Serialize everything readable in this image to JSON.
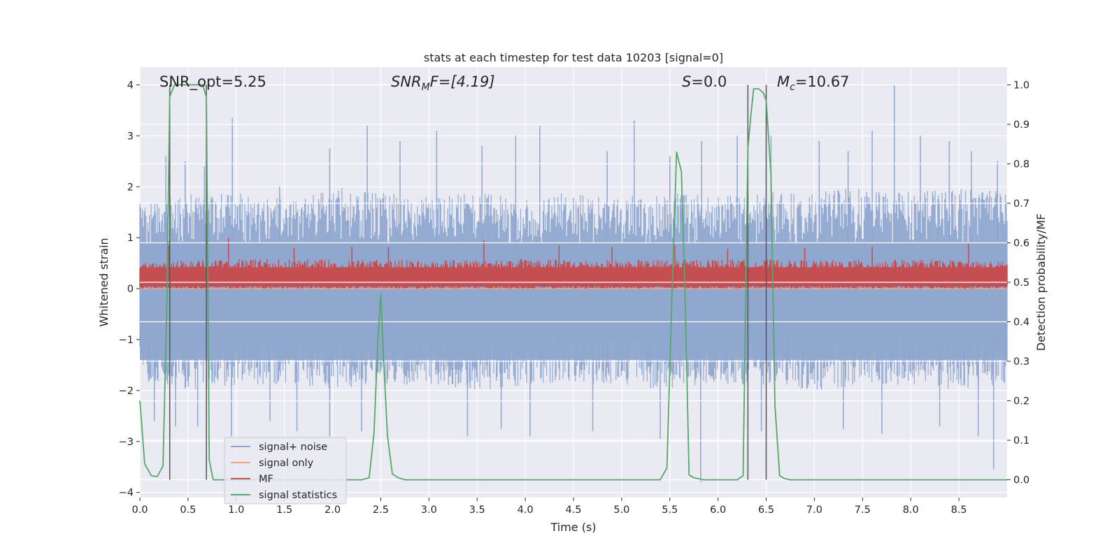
{
  "chart_data": {
    "type": "line",
    "title": "stats at each timestep for test data 10203 [signal=0]",
    "xlabel": "Time (s)",
    "ylabel_left": "Whitened strain",
    "ylabel_right": "Detection probability/MF",
    "xlim": [
      0.0,
      9.0
    ],
    "ylim_left": [
      -4.1,
      4.35
    ],
    "ylim_right": [
      -0.045,
      1.045
    ],
    "x_ticks": [
      "0.0",
      "0.5",
      "1.0",
      "1.5",
      "2.0",
      "2.5",
      "3.0",
      "3.5",
      "4.0",
      "4.5",
      "5.0",
      "5.5",
      "6.0",
      "6.5",
      "7.0",
      "7.5",
      "8.0",
      "8.5"
    ],
    "y_left_ticks": [
      "4",
      "3",
      "2",
      "1",
      "0",
      "−1",
      "−2",
      "−3",
      "−4"
    ],
    "y_right_ticks": [
      "1.0",
      "0.9",
      "0.8",
      "0.7",
      "0.6",
      "0.5",
      "0.4",
      "0.3",
      "0.2",
      "0.1",
      "0.0"
    ],
    "grid": true,
    "legend_position": "lower-left",
    "annotations": {
      "snr_opt": "SNR_opt=5.25",
      "snr_mf_main": "SNR",
      "snr_mf_sub": "M",
      "snr_mf_tail": "F=[4.19]",
      "s_main": "S",
      "s_tail": "=0.0",
      "mc_main": "M",
      "mc_sub": "c",
      "mc_tail": "=10.67"
    },
    "vertical_markers_s": [
      0.31,
      0.69,
      6.31,
      6.5
    ],
    "series": [
      {
        "name": "signal+ noise",
        "color": "#8fa6cf",
        "axis": "left",
        "description": "whitened strain noise band",
        "envelope_upper": [
          [
            0.0,
            1.7
          ],
          [
            0.5,
            1.9
          ],
          [
            1.0,
            1.9
          ],
          [
            1.5,
            1.8
          ],
          [
            2.0,
            2.0
          ],
          [
            2.5,
            1.9
          ],
          [
            3.0,
            1.8
          ],
          [
            3.5,
            1.9
          ],
          [
            4.0,
            1.8
          ],
          [
            4.5,
            1.9
          ],
          [
            5.0,
            1.8
          ],
          [
            5.5,
            1.9
          ],
          [
            6.0,
            1.8
          ],
          [
            6.5,
            1.9
          ],
          [
            7.0,
            1.9
          ],
          [
            7.5,
            2.0
          ],
          [
            8.0,
            1.9
          ],
          [
            8.5,
            2.0
          ],
          [
            9.0,
            1.9
          ]
        ],
        "envelope_lower": [
          [
            0.0,
            -1.8
          ],
          [
            0.5,
            -2.0
          ],
          [
            1.0,
            -1.9
          ],
          [
            1.5,
            -1.9
          ],
          [
            2.0,
            -2.0
          ],
          [
            2.5,
            -1.9
          ],
          [
            3.0,
            -1.9
          ],
          [
            3.5,
            -2.0
          ],
          [
            4.0,
            -1.9
          ],
          [
            4.5,
            -1.9
          ],
          [
            5.0,
            -1.9
          ],
          [
            5.5,
            -2.0
          ],
          [
            6.0,
            -1.9
          ],
          [
            6.5,
            -1.9
          ],
          [
            7.0,
            -2.0
          ],
          [
            7.5,
            -1.9
          ],
          [
            8.0,
            -1.9
          ],
          [
            8.5,
            -2.0
          ],
          [
            9.0,
            -1.9
          ]
        ],
        "peaks_upper": [
          [
            0.27,
            2.6
          ],
          [
            0.47,
            2.5
          ],
          [
            0.67,
            2.4
          ],
          [
            0.96,
            3.35
          ],
          [
            1.45,
            2.0
          ],
          [
            1.97,
            2.75
          ],
          [
            2.36,
            3.2
          ],
          [
            2.7,
            2.9
          ],
          [
            3.08,
            3.1
          ],
          [
            3.55,
            2.8
          ],
          [
            3.9,
            3.0
          ],
          [
            4.15,
            3.2
          ],
          [
            4.85,
            2.7
          ],
          [
            5.13,
            3.3
          ],
          [
            5.5,
            2.6
          ],
          [
            5.83,
            2.9
          ],
          [
            6.2,
            3.0
          ],
          [
            6.55,
            3.0
          ],
          [
            7.05,
            2.9
          ],
          [
            7.35,
            2.7
          ],
          [
            7.6,
            3.1
          ],
          [
            7.83,
            4.0
          ],
          [
            8.1,
            3.0
          ],
          [
            8.4,
            2.9
          ],
          [
            8.63,
            2.7
          ],
          [
            8.9,
            2.5
          ]
        ],
        "peaks_lower": [
          [
            0.15,
            -2.6
          ],
          [
            0.37,
            -2.7
          ],
          [
            0.6,
            -2.7
          ],
          [
            0.95,
            -2.9
          ],
          [
            1.35,
            -2.6
          ],
          [
            1.63,
            -2.8
          ],
          [
            1.97,
            -2.9
          ],
          [
            2.3,
            -2.8
          ],
          [
            3.4,
            -2.9
          ],
          [
            3.75,
            -2.75
          ],
          [
            4.05,
            -2.9
          ],
          [
            4.7,
            -2.8
          ],
          [
            5.4,
            -2.95
          ],
          [
            5.82,
            -3.8
          ],
          [
            6.45,
            -2.8
          ],
          [
            7.3,
            -2.75
          ],
          [
            7.7,
            -2.85
          ],
          [
            8.3,
            -2.7
          ],
          [
            8.7,
            -2.9
          ],
          [
            8.86,
            -3.55
          ]
        ]
      },
      {
        "name": "signal only",
        "color": "#e8a88e",
        "axis": "left",
        "x": [
          0.0,
          9.0
        ],
        "values": [
          0.0,
          0.0
        ]
      },
      {
        "name": "MF",
        "color": "#c44e52",
        "axis": "left",
        "description": "matched filter output band",
        "envelope_upper": [
          [
            0.0,
            0.45
          ],
          [
            1.0,
            0.5
          ],
          [
            2.0,
            0.5
          ],
          [
            3.0,
            0.48
          ],
          [
            4.0,
            0.5
          ],
          [
            5.0,
            0.48
          ],
          [
            6.0,
            0.5
          ],
          [
            7.0,
            0.48
          ],
          [
            8.0,
            0.5
          ],
          [
            9.0,
            0.45
          ]
        ],
        "envelope_lower": [
          [
            0.0,
            0.05
          ],
          [
            9.0,
            0.05
          ]
        ],
        "peaks_upper": [
          [
            0.3,
            0.85
          ],
          [
            0.92,
            1.0
          ],
          [
            1.6,
            0.8
          ],
          [
            2.2,
            0.82
          ],
          [
            2.58,
            0.82
          ],
          [
            3.57,
            0.95
          ],
          [
            4.35,
            0.85
          ],
          [
            4.9,
            0.82
          ],
          [
            5.55,
            0.85
          ],
          [
            6.1,
            0.78
          ],
          [
            6.9,
            0.8
          ],
          [
            7.6,
            0.82
          ],
          [
            8.6,
            0.9
          ]
        ]
      },
      {
        "name": "signal statistics",
        "color": "#55a868",
        "axis": "right",
        "x": [
          0.0,
          0.05,
          0.12,
          0.18,
          0.24,
          0.28,
          0.31,
          0.36,
          0.4,
          0.45,
          0.5,
          0.55,
          0.6,
          0.65,
          0.69,
          0.72,
          0.76,
          0.8,
          0.85,
          0.95,
          1.1,
          1.5,
          2.0,
          2.3,
          2.38,
          2.43,
          2.47,
          2.5,
          2.53,
          2.57,
          2.62,
          2.68,
          2.75,
          3.0,
          3.5,
          4.0,
          4.5,
          5.0,
          5.4,
          5.47,
          5.52,
          5.57,
          5.62,
          5.66,
          5.7,
          5.75,
          5.85,
          6.0,
          6.2,
          6.26,
          6.31,
          6.34,
          6.37,
          6.42,
          6.47,
          6.5,
          6.55,
          6.59,
          6.64,
          6.69,
          6.75,
          7.0,
          7.5,
          8.0,
          8.5,
          9.0
        ],
        "values": [
          0.2,
          0.04,
          0.01,
          0.008,
          0.035,
          0.45,
          0.97,
          1.0,
          1.0,
          1.0,
          1.0,
          1.0,
          1.0,
          1.0,
          0.97,
          0.05,
          0.0,
          0.0,
          0.0,
          0.0,
          0.0,
          0.0,
          0.0,
          0.0,
          0.005,
          0.12,
          0.35,
          0.47,
          0.3,
          0.11,
          0.015,
          0.005,
          0.0,
          0.0,
          0.0,
          0.0,
          0.0,
          0.0,
          0.0,
          0.03,
          0.45,
          0.83,
          0.78,
          0.45,
          0.012,
          0.005,
          0.0,
          0.0,
          0.0,
          0.01,
          0.84,
          0.92,
          0.99,
          0.99,
          0.98,
          0.96,
          0.77,
          0.19,
          0.01,
          0.003,
          0.0,
          0.0,
          0.0,
          0.0,
          0.0,
          0.0
        ]
      }
    ]
  }
}
